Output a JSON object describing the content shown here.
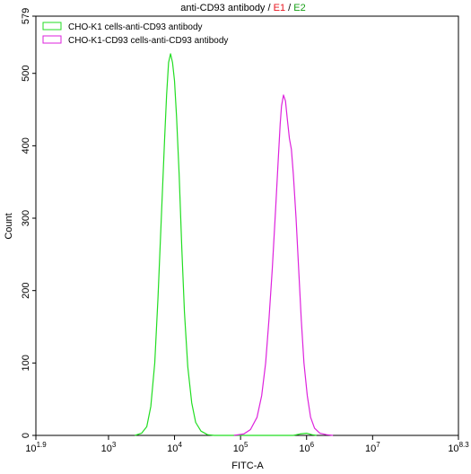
{
  "chart_data": {
    "type": "line",
    "title": {
      "main": "anti-CD93 antibody",
      "separator_1": " / ",
      "e1": "E1",
      "separator_2": " / ",
      "e2": "E2"
    },
    "xlabel": "FITC-A",
    "ylabel": "Count",
    "x_scale": "log10",
    "xlim": [
      1.9,
      8.3
    ],
    "ylim": [
      0,
      579
    ],
    "x_ticks": [
      {
        "exp": 1.9,
        "base": "10",
        "sup": "1.9"
      },
      {
        "exp": 3,
        "base": "10",
        "sup": "3"
      },
      {
        "exp": 4,
        "base": "10",
        "sup": "4"
      },
      {
        "exp": 5,
        "base": "10",
        "sup": "5"
      },
      {
        "exp": 6,
        "base": "10",
        "sup": "6"
      },
      {
        "exp": 7,
        "base": "10",
        "sup": "7"
      },
      {
        "exp": 8.3,
        "base": "10",
        "sup": "8.3"
      }
    ],
    "y_ticks": [
      0,
      100,
      200,
      300,
      400,
      500,
      579
    ],
    "legend_position": "top-left",
    "colors": {
      "e1": "#e8141e",
      "e2": "#17a017"
    },
    "series": [
      {
        "name": "CHO-K1 cells-anti-CD93 antibody",
        "color": "#22dd22",
        "points": [
          [
            3.4,
            0
          ],
          [
            3.5,
            3
          ],
          [
            3.58,
            12
          ],
          [
            3.64,
            40
          ],
          [
            3.7,
            100
          ],
          [
            3.75,
            190
          ],
          [
            3.8,
            300
          ],
          [
            3.85,
            410
          ],
          [
            3.88,
            470
          ],
          [
            3.91,
            515
          ],
          [
            3.94,
            527
          ],
          [
            3.97,
            515
          ],
          [
            4.0,
            490
          ],
          [
            4.03,
            440
          ],
          [
            4.07,
            360
          ],
          [
            4.11,
            260
          ],
          [
            4.15,
            170
          ],
          [
            4.2,
            95
          ],
          [
            4.26,
            45
          ],
          [
            4.32,
            18
          ],
          [
            4.4,
            6
          ],
          [
            4.5,
            1
          ],
          [
            4.6,
            0
          ],
          [
            5.8,
            0
          ],
          [
            5.9,
            2
          ],
          [
            6.0,
            3
          ],
          [
            6.08,
            1
          ],
          [
            6.15,
            0
          ]
        ]
      },
      {
        "name": "CHO-K1-CD93 cells-anti-CD93 antibody",
        "color": "#dd22dd",
        "points": [
          [
            4.9,
            0
          ],
          [
            5.05,
            2
          ],
          [
            5.15,
            8
          ],
          [
            5.25,
            25
          ],
          [
            5.32,
            55
          ],
          [
            5.38,
            100
          ],
          [
            5.43,
            160
          ],
          [
            5.48,
            230
          ],
          [
            5.53,
            310
          ],
          [
            5.57,
            380
          ],
          [
            5.6,
            430
          ],
          [
            5.62,
            455
          ],
          [
            5.65,
            470
          ],
          [
            5.68,
            462
          ],
          [
            5.71,
            435
          ],
          [
            5.74,
            410
          ],
          [
            5.77,
            395
          ],
          [
            5.8,
            360
          ],
          [
            5.84,
            300
          ],
          [
            5.88,
            230
          ],
          [
            5.92,
            160
          ],
          [
            5.96,
            100
          ],
          [
            6.01,
            55
          ],
          [
            6.06,
            25
          ],
          [
            6.12,
            10
          ],
          [
            6.2,
            3
          ],
          [
            6.3,
            1
          ],
          [
            6.4,
            0
          ]
        ]
      }
    ]
  }
}
